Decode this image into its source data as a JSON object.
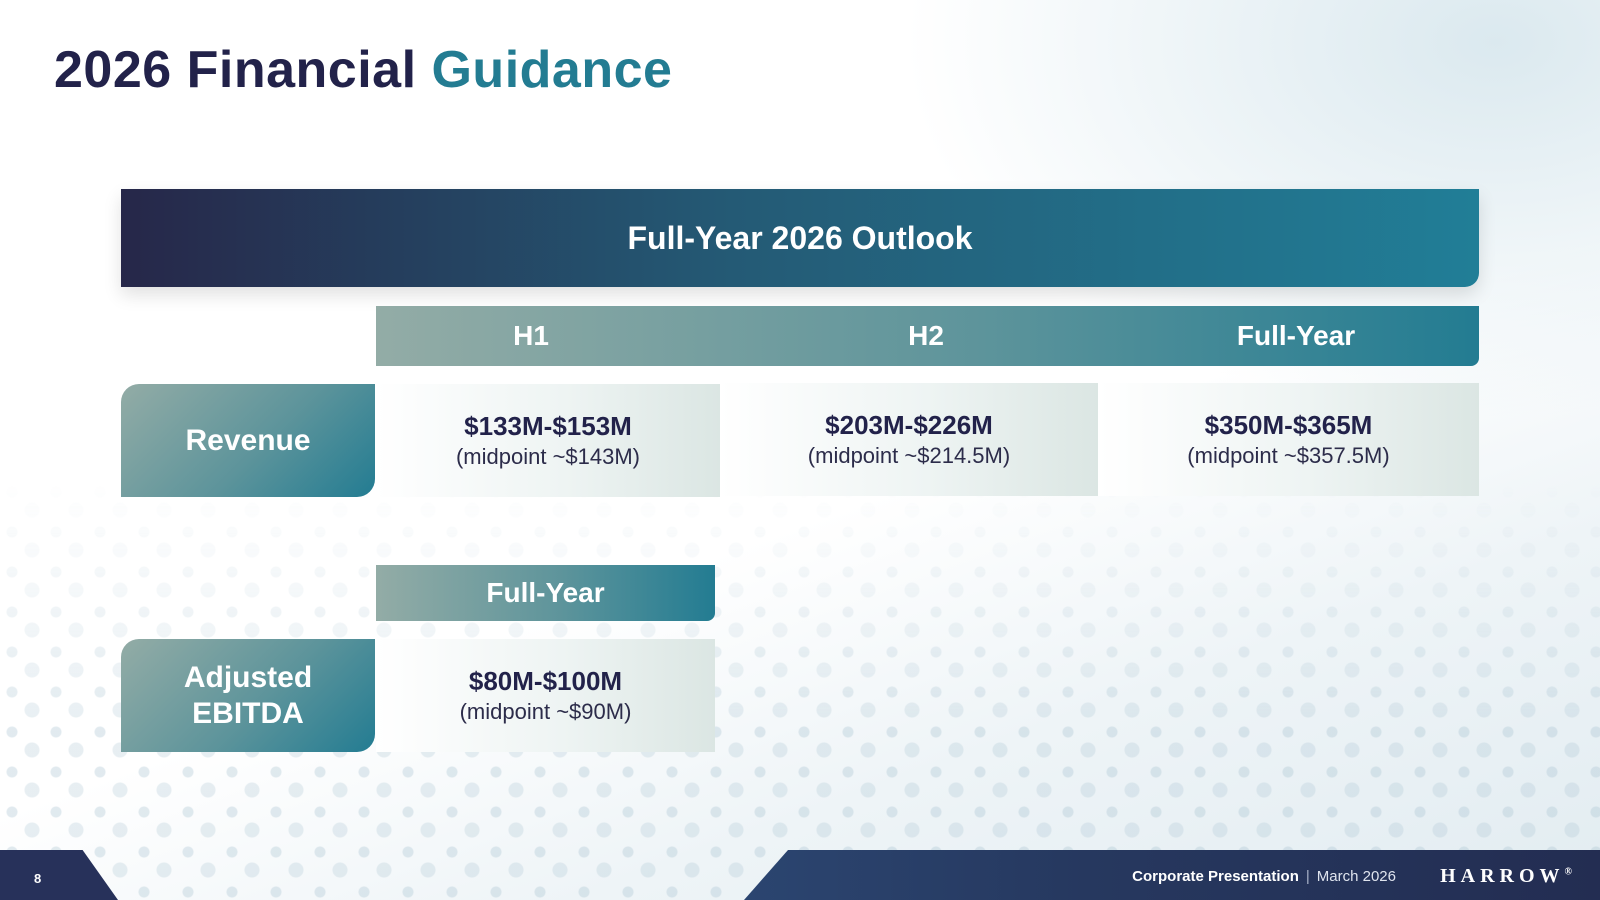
{
  "title": {
    "main": "2026 Financial",
    "accent": "Guidance"
  },
  "banner": {
    "label": "Full-Year 2026 Outlook"
  },
  "revenue": {
    "columns": [
      "H1",
      "H2",
      "Full-Year"
    ],
    "label": "Revenue",
    "cells": [
      {
        "range": "$133M-$153M",
        "midpoint": "(midpoint ~$143M)"
      },
      {
        "range": "$203M-$226M",
        "midpoint": "(midpoint ~$214.5M)"
      },
      {
        "range": "$350M-$365M",
        "midpoint": "(midpoint ~$357.5M)"
      }
    ]
  },
  "ebitda": {
    "column": "Full-Year",
    "label_line1": "Adjusted",
    "label_line2": "EBITDA",
    "cell": {
      "range": "$80M-$100M",
      "midpoint": "(midpoint ~$90M)"
    }
  },
  "footer": {
    "page_number": "8",
    "presentation": "Corporate Presentation",
    "separator": "|",
    "date": "March 2026",
    "logo": "HARROW",
    "logo_mark": "®"
  }
}
